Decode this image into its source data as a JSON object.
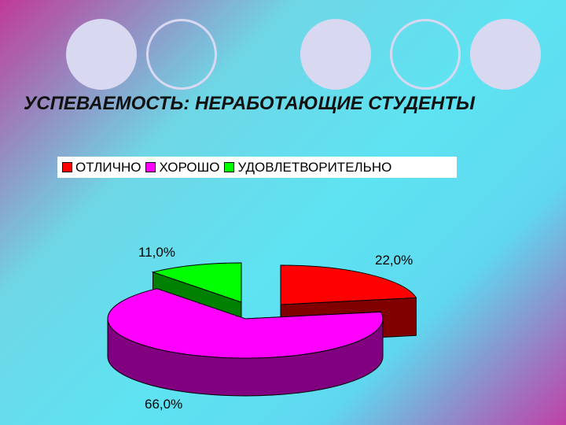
{
  "decorations": {
    "circles": [
      {
        "style": "filled"
      },
      {
        "style": "ring"
      },
      {
        "style": "filled"
      },
      {
        "style": "ring"
      },
      {
        "style": "filled"
      }
    ],
    "circle_color": "#d9d8f1"
  },
  "slide": {
    "title": "УСПЕВАЕМОСТЬ: НЕРАБОТАЮЩИЕ СТУДЕНТЫ"
  },
  "chart_data": {
    "type": "pie",
    "style": "3d-exploded",
    "title": "УСПЕВАЕМОСТЬ: НЕРАБОТАЮЩИЕ СТУДЕНТЫ",
    "legend_position": "top",
    "categories": [
      "ОТЛИЧНО",
      "ХОРОШО",
      "УДОВЛЕТВОРИТЕЛЬНО"
    ],
    "values": [
      22.0,
      66.0,
      11.0
    ],
    "value_labels": [
      "22,0%",
      "66,0%",
      "11,0%"
    ],
    "colors": [
      "#ff0000",
      "#ff00ff",
      "#00ff00"
    ],
    "side_colors": [
      "#800000",
      "#800080",
      "#008000"
    ]
  }
}
